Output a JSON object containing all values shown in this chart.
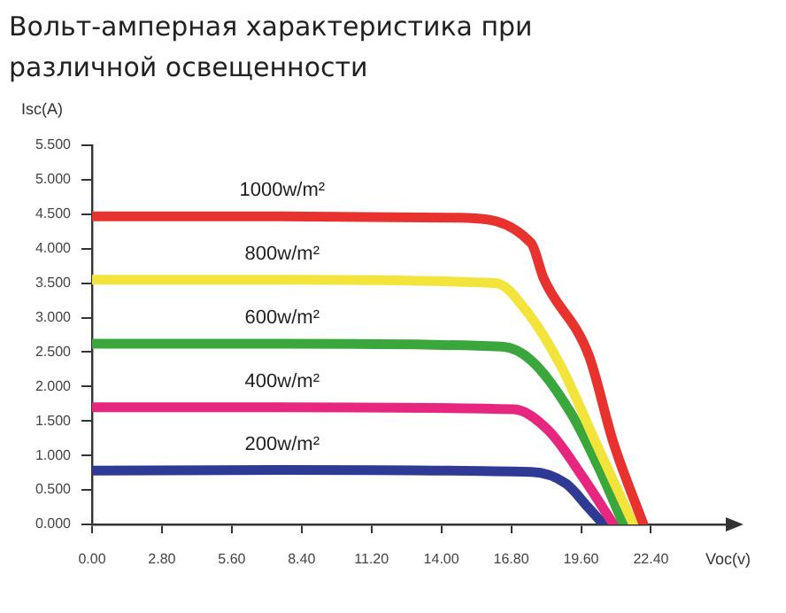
{
  "chart_data": {
    "type": "line",
    "title": "Вольт-амперная характеристика при различной освещенности",
    "xlabel": "Voc(v)",
    "ylabel": "Isc(A)",
    "xlim": [
      0,
      25.4
    ],
    "ylim": [
      0,
      5.5
    ],
    "xticks": [
      {
        "value": 0,
        "label": "0.00"
      },
      {
        "value": 2.8,
        "label": "2.80"
      },
      {
        "value": 5.6,
        "label": "5.60"
      },
      {
        "value": 8.4,
        "label": "8.40"
      },
      {
        "value": 11.2,
        "label": "11.20"
      },
      {
        "value": 14,
        "label": "14.00"
      },
      {
        "value": 16.8,
        "label": "16.80"
      },
      {
        "value": 19.6,
        "label": "19.60"
      },
      {
        "value": 22.4,
        "label": "22.40"
      }
    ],
    "yticks": [
      {
        "value": 0,
        "label": "0.000"
      },
      {
        "value": 0.5,
        "label": "0.500"
      },
      {
        "value": 1,
        "label": "1.000"
      },
      {
        "value": 1.5,
        "label": "1.500"
      },
      {
        "value": 2,
        "label": "2.000"
      },
      {
        "value": 2.5,
        "label": "2.500"
      },
      {
        "value": 3,
        "label": "3.000"
      },
      {
        "value": 3.5,
        "label": "3.500"
      },
      {
        "value": 4,
        "label": "4.000"
      },
      {
        "value": 4.5,
        "label": "4.500"
      },
      {
        "value": 5,
        "label": "5.000"
      },
      {
        "value": 5.5,
        "label": "5.500"
      }
    ],
    "grid": false,
    "legend": false,
    "marker": "none",
    "line_style": "solid",
    "series": [
      {
        "name": "1000w/m²",
        "color": "#e8322e",
        "x": [
          0,
          7.6,
          14.7,
          17.6,
          18.1,
          19.9,
          20.9,
          22.1
        ],
        "values": [
          4.47,
          4.47,
          4.45,
          4.08,
          3.57,
          2.46,
          1.18,
          0
        ]
      },
      {
        "name": "800w/m²",
        "color": "#f2e43a",
        "x": [
          0,
          7.6,
          16.2,
          17.4,
          18.8,
          20.2,
          21.7
        ],
        "values": [
          3.55,
          3.55,
          3.5,
          3.1,
          2.29,
          1.18,
          0
        ]
      },
      {
        "name": "600w/m²",
        "color": "#3aa73c",
        "x": [
          0,
          7.6,
          16.4,
          17.6,
          19.2,
          20.4,
          21.3
        ],
        "values": [
          2.62,
          2.62,
          2.58,
          2.38,
          1.61,
          0.75,
          0
        ]
      },
      {
        "name": "400w/m²",
        "color": "#e6267f",
        "x": [
          0,
          7.6,
          16.9,
          18.3,
          19.7,
          20.9
        ],
        "values": [
          1.7,
          1.7,
          1.67,
          1.36,
          0.67,
          0
        ]
      },
      {
        "name": "200w/m²",
        "color": "#2e3a94",
        "x": [
          0,
          7.6,
          17.6,
          19,
          19.9,
          20.5
        ],
        "values": [
          0.78,
          0.79,
          0.76,
          0.59,
          0.24,
          0
        ]
      }
    ]
  }
}
